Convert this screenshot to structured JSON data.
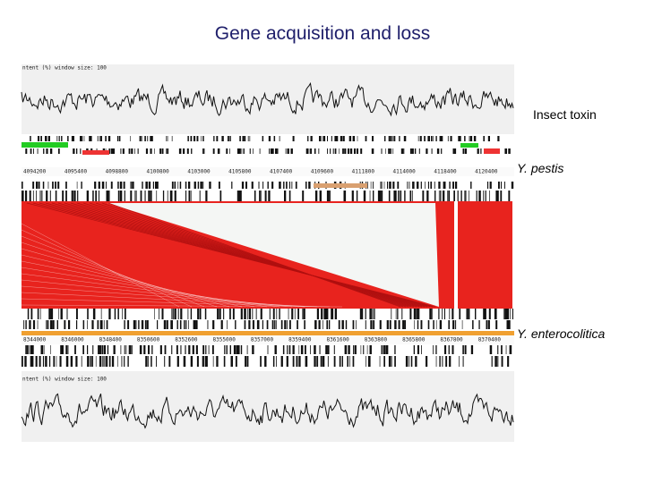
{
  "header": {
    "title": "Gene acquisition and loss"
  },
  "labels": {
    "insect_toxin": "Insect toxin",
    "top_genome": "Y. pestis",
    "bottom_genome": "Y. enterocolitica"
  },
  "screenshot": {
    "graph_caption": "ntent (%)  window size: 100",
    "top_ruler": [
      "4094200",
      "4095400",
      "4098800",
      "4100800",
      "4103000",
      "4105800",
      "4107400",
      "4109600",
      "4111800",
      "4114000",
      "4118400",
      "4120400"
    ],
    "bottom_ruler": [
      "8344000",
      "8346000",
      "8348400",
      "8350600",
      "8352600",
      "8355000",
      "8357000",
      "8359400",
      "8361600",
      "8363800",
      "8365800",
      "8367800",
      "8370400"
    ]
  }
}
